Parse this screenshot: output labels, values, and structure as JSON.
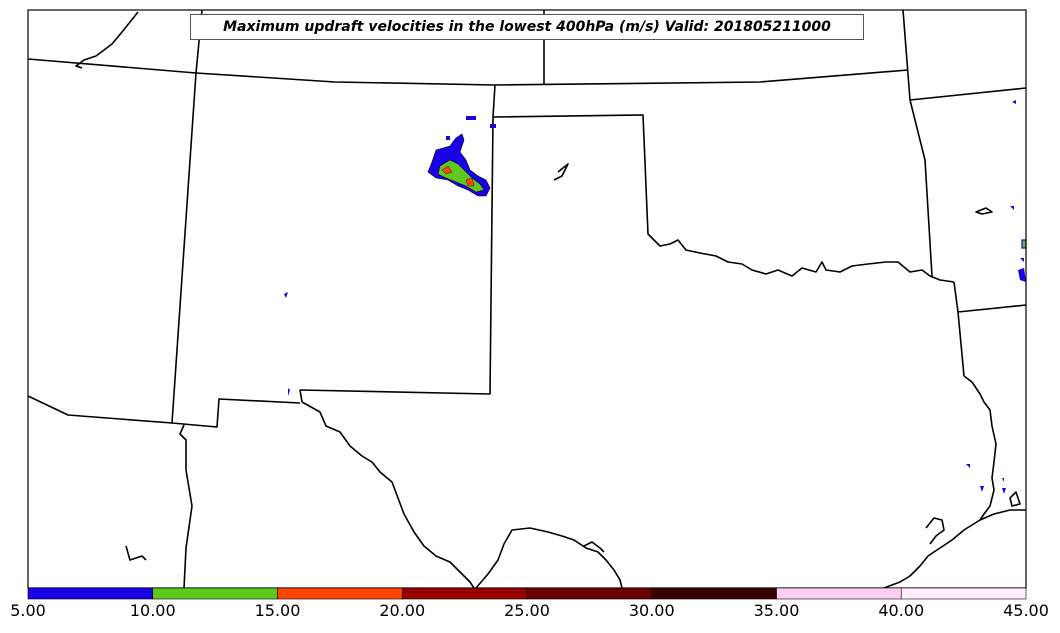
{
  "title": "Maximum updraft velocities in the lowest 400hPa (m/s) Valid: 201805211000",
  "legend": {
    "ticks": [
      "5.00",
      "10.00",
      "15.00",
      "20.00",
      "25.00",
      "30.00",
      "35.00",
      "40.00",
      "45.00"
    ],
    "colors": [
      "#1a00e6",
      "#5ec81e",
      "#ff4500",
      "#990000",
      "#6b0000",
      "#3a0000",
      "#ffccf2",
      "#ffeefa"
    ]
  },
  "colors": {
    "boundary": "#000000",
    "blue": "#1a00e6",
    "green": "#5ec81e",
    "orange": "#ff4500"
  }
}
